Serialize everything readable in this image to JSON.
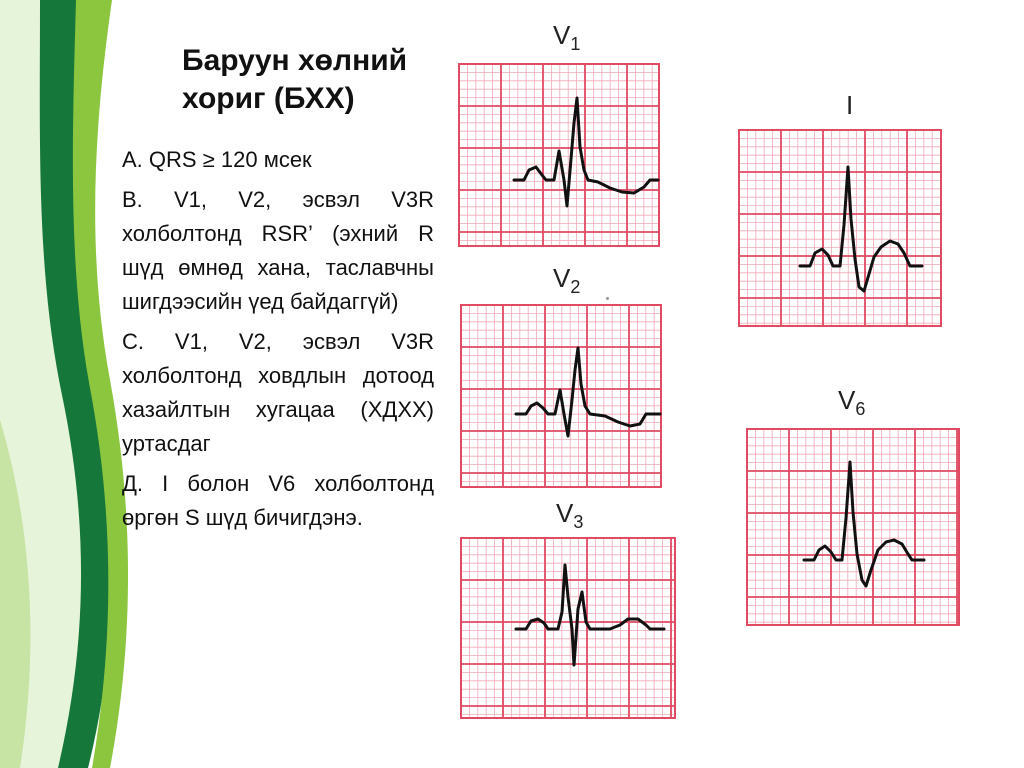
{
  "slide": {
    "title_line1": "Баруун хөлний",
    "title_line2": "хориг (БХХ)",
    "bullets": [
      "А. QRS ≥ 120 мсек",
      "В. V1, V2, эсвэл V3R холболтонд RSR’ (эхний R шүд өмнөд хана, таславчны шигдээсийн үед байдаггүй)",
      "С. V1, V2, эсвэл V3R холболтонд ховдлын дотоод хазайлтын хугацаа (ХДХХ) уртасдаг",
      "Д. I болон V6 холболтонд өргөн S шүд бичигдэнэ."
    ]
  },
  "leads": {
    "v1": {
      "main": "V",
      "sub": "1"
    },
    "v2": {
      "main": "V",
      "sub": "2"
    },
    "v3": {
      "main": "V",
      "sub": "3"
    },
    "i": {
      "main": "I",
      "sub": ""
    },
    "v6": {
      "main": "V",
      "sub": "6"
    }
  },
  "colors": {
    "grid_major": "#e04a62",
    "grid_minor": "#f2aab8",
    "trace": "#111111",
    "deco_dark": "#16773a",
    "deco_light": "#8cc63f"
  }
}
